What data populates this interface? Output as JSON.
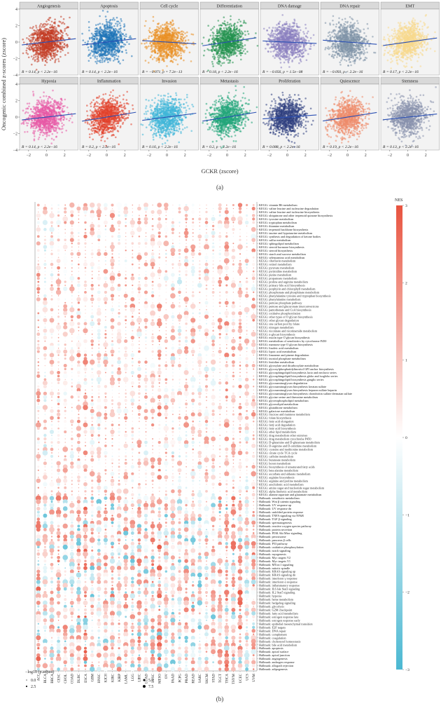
{
  "panel_a_label": "(a)",
  "panel_b_label": "(b)",
  "chart_data": [
    {
      "type": "scatter",
      "xlabel": "GCKR (zscore)",
      "ylabel": "Oncogenic combined z-scores (zscore)",
      "xticks": [
        "−2",
        "0",
        "2"
      ],
      "yticks": [
        "4",
        "2",
        "0",
        "−2",
        "−4"
      ],
      "xlim": [
        -3,
        3.5
      ],
      "ylim": [
        -4,
        4
      ],
      "panels": [
        {
          "title": "Angiogenesis",
          "color": "#c23a22",
          "slope": 0.14,
          "stat": "R = 0.14, p < 2.2e−16"
        },
        {
          "title": "Apoptosis",
          "color": "#1f74b8",
          "slope": 0.14,
          "stat": "R = 0.14, p < 2.2e−16"
        },
        {
          "title": "Cell cycle",
          "color": "#e99024",
          "slope": -0.071,
          "stat": "R = −0.071, p = 7.2e−13"
        },
        {
          "title": "Differentiation",
          "color": "#23924f",
          "slope": 0.18,
          "stat": "R = 0.18, p < 2.2e−16"
        },
        {
          "title": "DNA damage",
          "color": "#8a7fc0",
          "slope": -0.056,
          "stat": "R = −0.056, p = 1.5e−08"
        },
        {
          "title": "DNA repair",
          "color": "#7f94a8",
          "slope": -0.093,
          "stat": "R = −0.093, p < 2.2e−16"
        },
        {
          "title": "EMT",
          "color": "#f7d98c",
          "slope": 0.17,
          "stat": "R = 0.17, p < 2.2e−16"
        },
        {
          "title": "Hypoxia",
          "color": "#e85aa5",
          "slope": 0.14,
          "stat": "R = 0.14, p < 2.2e−16"
        },
        {
          "title": "Inflammation",
          "color": "#e2412b",
          "slope": 0.2,
          "stat": "R = 0.2, p < 2.2e−16"
        },
        {
          "title": "Invasion",
          "color": "#3fb6d8",
          "slope": 0.16,
          "stat": "R = 0.16, p < 2.2e−16"
        },
        {
          "title": "Metastasis",
          "color": "#23a57a",
          "slope": 0.2,
          "stat": "R = 0.2, p < 2.2e−16"
        },
        {
          "title": "Proliferation",
          "color": "#2f3f7f",
          "slope": 0.088,
          "stat": "R = 0.088, p < 2.2e−16"
        },
        {
          "title": "Quiescence",
          "color": "#ef8d6b",
          "slope": 0.19,
          "stat": "R = 0.19, p < 2.2e−16"
        },
        {
          "title": "Stemness",
          "color": "#8892ad",
          "slope": 0.13,
          "stat": "R = 0.13, p < 2.2e−16"
        }
      ]
    },
    {
      "type": "dotplot",
      "cancers": [
        "ACC",
        "BLCA",
        "BRCA",
        "CESC",
        "CHOL",
        "COAD",
        "DLBC",
        "ESCA",
        "GBM",
        "HNSC",
        "KICH",
        "KIRC",
        "KIRP",
        "LAML",
        "LGG",
        "LIHC",
        "LUAD",
        "LUSC",
        "MESO",
        "OV",
        "PAAD",
        "PCPG",
        "PRAD",
        "READ",
        "SARC",
        "SKCM",
        "STAD",
        "TGCT",
        "THCA",
        "THYM",
        "UCEC",
        "UCS",
        "UVM"
      ],
      "pathways": [
        "KEGG: vitamin B6 metabolism",
        "KEGG: valine leucine and isoleucine degradation",
        "KEGG: valine leucine and isoleucine biosynthesis",
        "KEGG: ubiquinone and other terpenoid quinone biosynthesis",
        "KEGG: tyrosine metabolism",
        "KEGG: tryptophan metabolism",
        "KEGG: thiamine metabolism",
        "KEGG: terpenoid backbone biosynthesis",
        "KEGG: taurine and hypotaurine metabolism",
        "KEGG: synthesis and degradation of ketone bodies",
        "KEGG: sulfur metabolism",
        "KEGG: sphingolipid metabolism",
        "KEGG: steroid hormone biosynthesis",
        "KEGG: steroid biosynthesis",
        "KEGG: starch and sucrose metabolism",
        "KEGG: selenoamino acid metabolism",
        "KEGG: riboflavin metabolism",
        "KEGG: retinol metabolism",
        "KEGG: pyruvate metabolism",
        "KEGG: pyrimidine metabolism",
        "KEGG: purine metabolism",
        "KEGG: propanoate metabolism",
        "KEGG: proline and arginine metabolism",
        "KEGG: primary bile acid biosynthesis",
        "KEGG: porphyrin and chlorophyll metabolism",
        "KEGG: phosphonate and phosphinate metabolism",
        "KEGG: phenylalanine tyrosine and tryptophan biosynthesis",
        "KEGG: phenylalanine metabolism",
        "KEGG: pentose phosphate pathway",
        "KEGG: pentose and glucuronate interconversions",
        "KEGG: pantothenate and CoA biosynthesis",
        "KEGG: oxidative phosphorylation",
        "KEGG: other types of O glycan biosynthesis",
        "KEGG: other glycan degradation",
        "KEGG: one carbon pool by folate",
        "KEGG: nitrogen metabolism",
        "KEGG: nicotinate and nicotinamide metabolism",
        "KEGG: n-glycan biosynthesis",
        "KEGG: mucin type O glycan biosynthesis",
        "KEGG: metabolism of xenobiotics by cytochrome P450",
        "KEGG: mannose type O glycan biosynthesis",
        "KEGG: linoleic acid metabolism",
        "KEGG: lipoic acid metabolism",
        "KEGG: limonene and pinene degradation",
        "KEGG: inositol phosphate metabolism",
        "KEGG: histidine metabolism",
        "KEGG: glyoxylate and dicarboxylate metabolism",
        "KEGG: glycosylphosphatidylinositol GPI anchor biosynthesis",
        "KEGG: glycosphingolipid biosynthesis lacto and neolacto series",
        "KEGG: glycosphingolipid biosynthesis globo and isoglobo series",
        "KEGG: glycosphingolipid biosynthesis ganglio series",
        "KEGG: glycosaminoglycan degradation",
        "KEGG: glycosaminoglycan biosynthesis keratan sulfate",
        "KEGG: glycosaminoglycan biosynthesis heparan sulfate heparin",
        "KEGG: glycosaminoglycan biosynthesis chondroitin sulfate dermatan sulfate",
        "KEGG: glycine serine and threonine metabolism",
        "KEGG: glycerophospholipid metabolism",
        "KEGG: glycerolipid metabolism",
        "KEGG: glutathione metabolism",
        "KEGG: galactose metabolism",
        "KEGG: fructose and mannose metabolism",
        "KEGG: folate biosynthesis",
        "KEGG: fatty acid elongation",
        "KEGG: fatty acid degradation",
        "KEGG: fatty acid biosynthesis",
        "KEGG: ether lipid metabolism",
        "KEGG: drug metabolism other enzymes",
        "KEGG: drug metabolism cytochrome P450",
        "KEGG: D-glutamine and D-glutamate metabolism",
        "KEGG: D-arginine and D-ornithine metabolism",
        "KEGG: cysteine and methionine metabolism",
        "KEGG: citrate cycle TCA cycle",
        "KEGG: caffeine metabolism",
        "KEGG: butanoate metabolism",
        "KEGG: boron metabolism",
        "KEGG: biosynthesis of unsaturated fatty acids",
        "KEGG: beta alanine metabolism",
        "KEGG: ascorbate and aldarate metabolism",
        "KEGG: arginine biosynthesis",
        "KEGG: arginine and proline metabolism",
        "KEGG: arachidonic acid metabolism",
        "KEGG: amino sugar and nucleotide sugar metabolism",
        "KEGG: alpha linolenic acid metabolism",
        "KEGG: alanine aspartate and glutamate metabolism",
        "Hallmark: xenobiotic metabolism",
        "Hallmark: Wnt β catenin signaling",
        "Hallmark: UV response up",
        "Hallmark: UV response dn",
        "Hallmark: unfolded protein response",
        "Hallmark: TNFA signaling via NFkB",
        "Hallmark: TGF β signaling",
        "Hallmark: spermatogenesis",
        "Hallmark: reactive oxygen species pathway",
        "Hallmark: protein secretion",
        "Hallmark: PI3K Akt Mtor signaling",
        "Hallmark: peroxisome",
        "Hallmark: pancreas β cells",
        "Hallmark: P53 pathway",
        "Hallmark: oxidative phosphorylation",
        "Hallmark: notch signaling",
        "Hallmark: myogenesis",
        "Hallmark: Myc targets V2",
        "Hallmark: Myc targets V1",
        "Hallmark: MTorc1 signaling",
        "Hallmark: mitotic spindle",
        "Hallmark: KRAS signaling up",
        "Hallmark: KRAS signaling dn",
        "Hallmark: interferon γ response",
        "Hallmark: interferon α response",
        "Hallmark: inflammatory response",
        "Hallmark: IL6 Jak Stat3 signaling",
        "Hallmark: IL2 Stat5 signaling",
        "Hallmark: hypoxia",
        "Hallmark: heme metabolism",
        "Hallmark: hedgehog signaling",
        "Hallmark: glycolysis",
        "Hallmark: G2M checkpoint",
        "Hallmark: fatty acid metabolism",
        "Hallmark: estrogen response late",
        "Hallmark: estrogen response early",
        "Hallmark: epithelial mesenchymal transition",
        "Hallmark: E2F targets",
        "Hallmark: DNA repair",
        "Hallmark: complement",
        "Hallmark: coagulation",
        "Hallmark: cholesterol homeostasis",
        "Hallmark: bile acid metabolism",
        "Hallmark: apoptosis",
        "Hallmark: apical surface",
        "Hallmark: apical junction",
        "Hallmark: angiogenesis",
        "Hallmark: androgen response",
        "Hallmark: allograft rejection",
        "Hallmark: adipogenesis"
      ],
      "colorbar": {
        "title": "NES",
        "ticks": [
          "3",
          "2",
          "1",
          "0",
          "−1",
          "−2",
          "−3"
        ],
        "range": [
          -3,
          3
        ],
        "high_color": "#e8533f",
        "mid_color": "#ffffff",
        "low_color": "#4bb8d2"
      },
      "size_legend": {
        "title": "−log10 (p.adjust)",
        "entries": [
          "0.0",
          "2.5",
          "5.0",
          "7.5"
        ]
      }
    }
  ]
}
